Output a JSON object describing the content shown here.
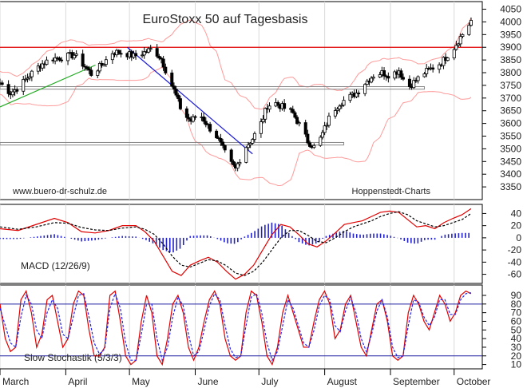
{
  "colors": {
    "background": "#ffffff",
    "frame": "#000000",
    "grid": "#d9d9d9",
    "candle": "#000000",
    "bollinger": "#ff9a9a",
    "resistance": "#e00000",
    "support_box": "#888888",
    "trend_up": "#22aa22",
    "trend_down": "#1a1ad8",
    "macd_line": "#e00000",
    "macd_signal": "#000000",
    "macd_hist": "#2222cc",
    "stoch_k": "#e00000",
    "stoch_d": "#2222ee",
    "stoch_levels": "#2020a0"
  },
  "chart_data": [
    {
      "type": "candlestick",
      "title": "EuroStoxx 50 auf Tagesbasis",
      "watermark_left": "www.buero-dr-schulz.de",
      "watermark_right": "Hoppenstedt-Charts",
      "ylim": [
        3300,
        4080
      ],
      "y_ticks": [
        3350,
        3400,
        3450,
        3500,
        3550,
        3600,
        3650,
        3700,
        3750,
        3800,
        3850,
        3900,
        3950,
        4000,
        4050
      ],
      "x_months": [
        "March",
        "April",
        "May",
        "June",
        "July",
        "August",
        "September",
        "October"
      ],
      "x_range": [
        "2007-03-01",
        "2007-10-09"
      ],
      "month_starts": [
        "2007-03-01",
        "2007-04-01",
        "2007-05-01",
        "2007-06-01",
        "2007-07-01",
        "2007-08-01",
        "2007-09-01",
        "2007-10-01"
      ],
      "resistance_level": 3900,
      "support_zones": [
        {
          "from": "2007-03-01",
          "to": "2007-09-17",
          "low": 3735,
          "high": 3745
        },
        {
          "from": "2007-03-01",
          "to": "2007-08-10",
          "low": 3515,
          "high": 3525
        }
      ],
      "trendlines": [
        {
          "name": "up",
          "from": [
            "2007-03-01",
            3665
          ],
          "to": [
            "2007-04-15",
            3830
          ]
        },
        {
          "name": "down",
          "from": [
            "2007-04-30",
            3900
          ],
          "to": [
            "2007-06-28",
            3480
          ]
        }
      ],
      "close": [
        [
          "2007-03-01",
          3760
        ],
        [
          "2007-03-06",
          3720
        ],
        [
          "2007-03-10",
          3745
        ],
        [
          "2007-03-15",
          3790
        ],
        [
          "2007-03-20",
          3830
        ],
        [
          "2007-03-25",
          3855
        ],
        [
          "2007-03-30",
          3860
        ],
        [
          "2007-04-05",
          3870
        ],
        [
          "2007-04-10",
          3825
        ],
        [
          "2007-04-13",
          3795
        ],
        [
          "2007-04-18",
          3830
        ],
        [
          "2007-04-23",
          3880
        ],
        [
          "2007-04-28",
          3880
        ],
        [
          "2007-05-03",
          3865
        ],
        [
          "2007-05-08",
          3880
        ],
        [
          "2007-05-12",
          3895
        ],
        [
          "2007-05-16",
          3855
        ],
        [
          "2007-05-19",
          3790
        ],
        [
          "2007-05-22",
          3730
        ],
        [
          "2007-05-26",
          3640
        ],
        [
          "2007-05-30",
          3610
        ],
        [
          "2007-06-03",
          3640
        ],
        [
          "2007-06-07",
          3590
        ],
        [
          "2007-06-11",
          3550
        ],
        [
          "2007-06-14",
          3500
        ],
        [
          "2007-06-17",
          3450
        ],
        [
          "2007-06-20",
          3420
        ],
        [
          "2007-06-24",
          3500
        ],
        [
          "2007-06-28",
          3540
        ],
        [
          "2007-07-02",
          3600
        ],
        [
          "2007-07-05",
          3670
        ],
        [
          "2007-07-09",
          3680
        ],
        [
          "2007-07-13",
          3660
        ],
        [
          "2007-07-17",
          3640
        ],
        [
          "2007-07-21",
          3580
        ],
        [
          "2007-07-24",
          3530
        ],
        [
          "2007-07-28",
          3500
        ],
        [
          "2007-07-31",
          3560
        ],
        [
          "2007-08-04",
          3640
        ],
        [
          "2007-08-08",
          3680
        ],
        [
          "2007-08-12",
          3700
        ],
        [
          "2007-08-16",
          3720
        ],
        [
          "2007-08-20",
          3760
        ],
        [
          "2007-08-24",
          3790
        ],
        [
          "2007-08-28",
          3800
        ],
        [
          "2007-09-01",
          3790
        ],
        [
          "2007-09-05",
          3810
        ],
        [
          "2007-09-09",
          3740
        ],
        [
          "2007-09-13",
          3770
        ],
        [
          "2007-09-17",
          3800
        ],
        [
          "2007-09-21",
          3820
        ],
        [
          "2007-09-25",
          3840
        ],
        [
          "2007-09-28",
          3870
        ],
        [
          "2007-10-01",
          3900
        ],
        [
          "2007-10-04",
          3940
        ],
        [
          "2007-10-07",
          3975
        ],
        [
          "2007-10-09",
          4005
        ]
      ]
    },
    {
      "type": "line",
      "title": "MACD (12/26/9)",
      "ylim": [
        -75,
        55
      ],
      "y_ticks": [
        -60,
        -40,
        -20,
        0,
        20,
        40
      ],
      "series": [
        {
          "role": "macd",
          "points": [
            [
              0,
              15
            ],
            [
              4,
              12
            ],
            [
              8,
              22
            ],
            [
              12,
              32
            ],
            [
              15,
              25
            ],
            [
              18,
              10
            ],
            [
              21,
              8
            ],
            [
              24,
              12
            ],
            [
              27,
              20
            ],
            [
              30,
              20
            ],
            [
              32,
              10
            ],
            [
              34,
              -5
            ],
            [
              36,
              -30
            ],
            [
              38,
              -55
            ],
            [
              40,
              -62
            ],
            [
              42,
              -45
            ],
            [
              44,
              -38
            ],
            [
              46,
              -32
            ],
            [
              48,
              -40
            ],
            [
              50,
              -55
            ],
            [
              52,
              -68
            ],
            [
              54,
              -60
            ],
            [
              56,
              -45
            ],
            [
              58,
              -20
            ],
            [
              60,
              5
            ],
            [
              62,
              22
            ],
            [
              64,
              18
            ],
            [
              66,
              5
            ],
            [
              68,
              -10
            ],
            [
              70,
              -15
            ],
            [
              72,
              -5
            ],
            [
              74,
              8
            ],
            [
              76,
              22
            ],
            [
              78,
              25
            ],
            [
              80,
              28
            ],
            [
              82,
              35
            ],
            [
              84,
              42
            ],
            [
              86,
              44
            ],
            [
              88,
              42
            ],
            [
              90,
              30
            ],
            [
              92,
              18
            ],
            [
              94,
              20
            ],
            [
              96,
              15
            ],
            [
              98,
              25
            ],
            [
              100,
              32
            ],
            [
              102,
              38
            ],
            [
              104,
              48
            ]
          ]
        },
        {
          "role": "signal",
          "points": [
            [
              0,
              18
            ],
            [
              4,
              14
            ],
            [
              8,
              18
            ],
            [
              12,
              25
            ],
            [
              15,
              24
            ],
            [
              18,
              17
            ],
            [
              21,
              13
            ],
            [
              24,
              12
            ],
            [
              27,
              16
            ],
            [
              30,
              18
            ],
            [
              32,
              14
            ],
            [
              34,
              6
            ],
            [
              36,
              -10
            ],
            [
              38,
              -30
            ],
            [
              40,
              -45
            ],
            [
              42,
              -48
            ],
            [
              44,
              -42
            ],
            [
              46,
              -36
            ],
            [
              48,
              -38
            ],
            [
              50,
              -46
            ],
            [
              52,
              -58
            ],
            [
              54,
              -62
            ],
            [
              56,
              -55
            ],
            [
              58,
              -40
            ],
            [
              60,
              -20
            ],
            [
              62,
              0
            ],
            [
              64,
              12
            ],
            [
              66,
              12
            ],
            [
              68,
              4
            ],
            [
              70,
              -6
            ],
            [
              72,
              -8
            ],
            [
              74,
              0
            ],
            [
              76,
              10
            ],
            [
              78,
              18
            ],
            [
              80,
              23
            ],
            [
              82,
              28
            ],
            [
              84,
              35
            ],
            [
              86,
              40
            ],
            [
              88,
              43
            ],
            [
              90,
              38
            ],
            [
              92,
              28
            ],
            [
              94,
              23
            ],
            [
              96,
              18
            ],
            [
              98,
              20
            ],
            [
              100,
              25
            ],
            [
              102,
              30
            ],
            [
              104,
              40
            ]
          ]
        }
      ],
      "histogram_pct": [
        [
          0,
          -2
        ],
        [
          4,
          -2
        ],
        [
          8,
          2
        ],
        [
          12,
          6
        ],
        [
          15,
          0
        ],
        [
          18,
          -6
        ],
        [
          21,
          -4
        ],
        [
          24,
          0
        ],
        [
          27,
          3
        ],
        [
          30,
          2
        ],
        [
          32,
          -3
        ],
        [
          34,
          -10
        ],
        [
          36,
          -20
        ],
        [
          38,
          -25
        ],
        [
          40,
          -17
        ],
        [
          42,
          3
        ],
        [
          44,
          4
        ],
        [
          46,
          4
        ],
        [
          48,
          -2
        ],
        [
          50,
          -9
        ],
        [
          52,
          -10
        ],
        [
          54,
          2
        ],
        [
          56,
          10
        ],
        [
          58,
          20
        ],
        [
          60,
          25
        ],
        [
          62,
          22
        ],
        [
          64,
          6
        ],
        [
          66,
          -7
        ],
        [
          68,
          -13
        ],
        [
          70,
          -9
        ],
        [
          72,
          3
        ],
        [
          74,
          8
        ],
        [
          76,
          12
        ],
        [
          78,
          7
        ],
        [
          80,
          5
        ],
        [
          82,
          7
        ],
        [
          84,
          7
        ],
        [
          86,
          4
        ],
        [
          88,
          -1
        ],
        [
          90,
          -8
        ],
        [
          92,
          -10
        ],
        [
          94,
          -3
        ],
        [
          96,
          -3
        ],
        [
          98,
          5
        ],
        [
          100,
          7
        ],
        [
          102,
          8
        ],
        [
          104,
          8
        ]
      ]
    },
    {
      "type": "line",
      "title": "Slow Stochastik (5/3/3)",
      "ylim": [
        5,
        102
      ],
      "y_ticks": [
        10,
        20,
        30,
        40,
        50,
        60,
        70,
        80,
        90
      ],
      "levels": [
        20,
        80
      ],
      "series": [
        {
          "role": "k",
          "values": [
            80,
            40,
            25,
            30,
            85,
            95,
            70,
            30,
            45,
            85,
            90,
            60,
            30,
            40,
            80,
            95,
            90,
            50,
            20,
            20,
            30,
            90,
            95,
            60,
            20,
            10,
            15,
            60,
            90,
            70,
            20,
            10,
            40,
            80,
            90,
            70,
            30,
            15,
            30,
            60,
            85,
            95,
            80,
            40,
            20,
            15,
            20,
            70,
            95,
            90,
            60,
            20,
            10,
            30,
            70,
            90,
            70,
            50,
            30,
            30,
            60,
            85,
            95,
            80,
            40,
            50,
            80,
            90,
            60,
            30,
            20,
            50,
            80,
            85,
            60,
            20,
            15,
            20,
            70,
            90,
            80,
            60,
            50,
            70,
            90,
            80,
            60,
            70,
            90,
            95,
            92
          ]
        },
        {
          "role": "d",
          "values": [
            75,
            55,
            35,
            30,
            65,
            90,
            80,
            50,
            40,
            70,
            85,
            75,
            45,
            40,
            65,
            90,
            92,
            65,
            35,
            22,
            28,
            75,
            92,
            75,
            35,
            15,
            15,
            45,
            80,
            80,
            40,
            15,
            30,
            65,
            88,
            78,
            45,
            20,
            25,
            50,
            78,
            92,
            85,
            55,
            28,
            18,
            20,
            55,
            88,
            92,
            70,
            35,
            15,
            25,
            55,
            85,
            75,
            55,
            35,
            30,
            50,
            78,
            90,
            85,
            55,
            48,
            72,
            88,
            70,
            40,
            25,
            45,
            72,
            85,
            65,
            30,
            18,
            20,
            55,
            85,
            82,
            65,
            55,
            65,
            85,
            85,
            68,
            68,
            85,
            92,
            93
          ]
        }
      ]
    }
  ]
}
